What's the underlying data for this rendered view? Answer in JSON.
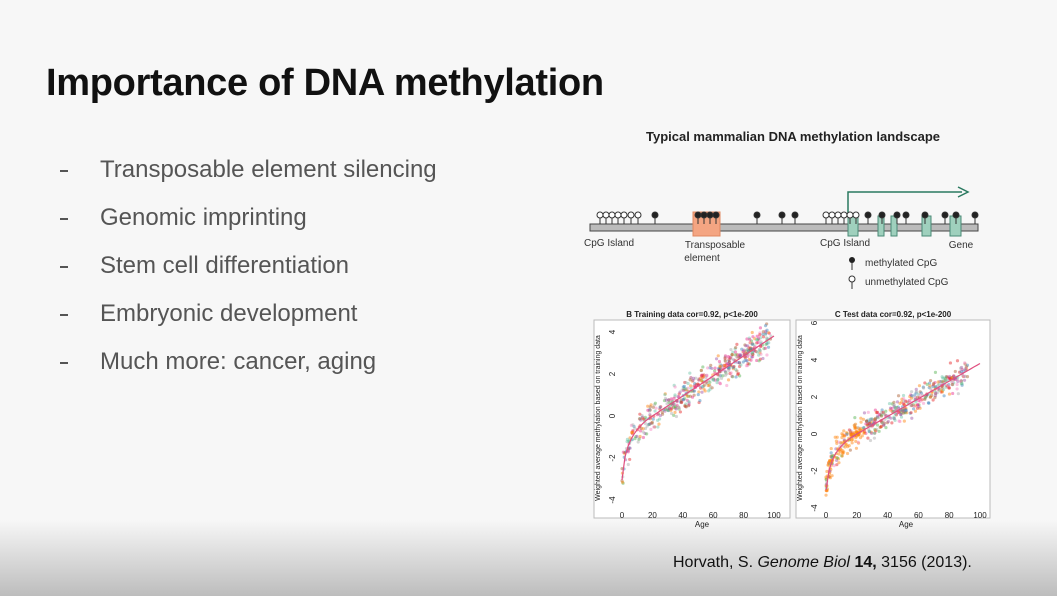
{
  "title": "Importance of DNA methylation",
  "bullets": [
    "Transposable element silencing",
    "Genomic imprinting",
    "Stem cell differentiation",
    "Embryonic development",
    "Much more: cancer, aging"
  ],
  "diagram": {
    "title": "Typical mammalian DNA methylation landscape",
    "labels": {
      "cpg_island_1": "CpG Island",
      "transposable_line1": "Transposable",
      "transposable_line2": "element",
      "cpg_island_2": "CpG Island",
      "gene": "Gene"
    },
    "legend": {
      "methylated": "methylated CpG",
      "unmethylated": "unmethylated CpG"
    }
  },
  "plots": [
    {
      "title": "B Training data cor=0.92, p<1e-200",
      "x_label": "Age",
      "y_label": "Weighted average methylation based on training data",
      "xticks": [
        "0",
        "20",
        "40",
        "60",
        "80",
        "100"
      ],
      "yticks": [
        "-4",
        "-2",
        "0",
        "2",
        "4"
      ]
    },
    {
      "title": "C Test data cor=0.92, p<1e-200",
      "x_label": "Age",
      "y_label": "Weighted average methylation based on training data",
      "xticks": [
        "0",
        "20",
        "40",
        "60",
        "80",
        "100"
      ],
      "yticks": [
        "-4",
        "-2",
        "0",
        "2",
        "4",
        "6"
      ]
    }
  ],
  "citation": {
    "author": "Horvath, S.",
    "journal": "Genome Biol",
    "volume": "14,",
    "rest": "3156 (2013)."
  }
}
